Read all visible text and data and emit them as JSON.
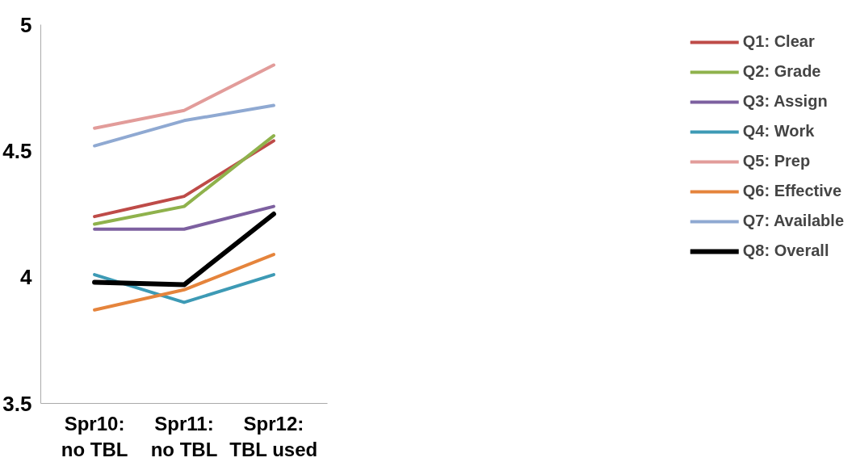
{
  "chart_data": {
    "type": "line",
    "categories": [
      "Spr10:\nno TBL",
      "Spr11:\nno TBL",
      "Spr12:\nTBL used"
    ],
    "series": [
      {
        "name": "Q1: Clear",
        "color": "#be4b48",
        "values": [
          4.24,
          4.32,
          4.54
        ]
      },
      {
        "name": "Q2: Grade",
        "color": "#8fb24c",
        "values": [
          4.21,
          4.28,
          4.56
        ]
      },
      {
        "name": "Q3: Assign",
        "color": "#7d60a0",
        "values": [
          4.19,
          4.19,
          4.28
        ]
      },
      {
        "name": "Q4: Work",
        "color": "#3d9ab5",
        "values": [
          4.01,
          3.9,
          4.01
        ]
      },
      {
        "name": "Q5: Prep",
        "color": "#e29c9a",
        "values": [
          4.59,
          4.66,
          4.84
        ]
      },
      {
        "name": "Q6: Effective",
        "color": "#e5843c",
        "values": [
          3.87,
          3.95,
          4.09
        ]
      },
      {
        "name": "Q7: Available",
        "color": "#8fa9d2",
        "values": [
          4.52,
          4.62,
          4.68
        ]
      },
      {
        "name": "Q8: Overall",
        "color": "#000000",
        "values": [
          3.98,
          3.97,
          4.25
        ]
      }
    ],
    "ylim": [
      3.5,
      5
    ],
    "yticks": [
      3.5,
      4,
      4.5,
      5
    ],
    "grid": false,
    "legend": "right",
    "marker": "none",
    "line_style": "solid"
  }
}
